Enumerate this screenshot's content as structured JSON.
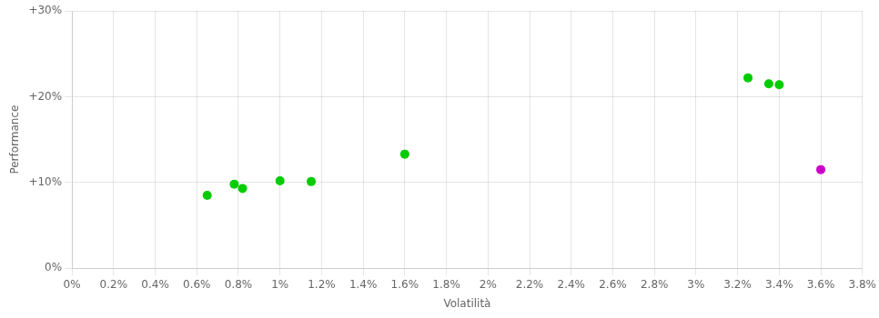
{
  "chart_data": {
    "type": "scatter",
    "xlabel": "Volatilità",
    "ylabel": "Performance",
    "series": [
      {
        "color": "#00cc00",
        "x": [
          0.0065,
          0.0078,
          0.0082,
          0.01,
          0.0115,
          0.016,
          0.0325,
          0.0335,
          0.034
        ],
        "values": [
          0.085,
          0.098,
          0.093,
          0.102,
          0.101,
          0.133,
          0.222,
          0.215,
          0.214
        ]
      },
      {
        "color": "#cc00cc",
        "x": [
          0.036
        ],
        "values": [
          0.115
        ]
      }
    ],
    "xlim": [
      0.0,
      0.038
    ],
    "ylim": [
      0.0,
      0.3
    ],
    "xticks": [
      {
        "value": 0.0,
        "label": "0%"
      },
      {
        "value": 0.002,
        "label": "0.2%"
      },
      {
        "value": 0.004,
        "label": "0.4%"
      },
      {
        "value": 0.006,
        "label": "0.6%"
      },
      {
        "value": 0.008,
        "label": "0.8%"
      },
      {
        "value": 0.01,
        "label": "1%"
      },
      {
        "value": 0.012,
        "label": "1.2%"
      },
      {
        "value": 0.014,
        "label": "1.4%"
      },
      {
        "value": 0.016,
        "label": "1.6%"
      },
      {
        "value": 0.018,
        "label": "1.8%"
      },
      {
        "value": 0.02,
        "label": "2%"
      },
      {
        "value": 0.022,
        "label": "2.2%"
      },
      {
        "value": 0.024,
        "label": "2.4%"
      },
      {
        "value": 0.026,
        "label": "2.6%"
      },
      {
        "value": 0.028,
        "label": "2.8%"
      },
      {
        "value": 0.03,
        "label": "3%"
      },
      {
        "value": 0.032,
        "label": "3.2%"
      },
      {
        "value": 0.034,
        "label": "3.4%"
      },
      {
        "value": 0.036,
        "label": "3.6%"
      },
      {
        "value": 0.038,
        "label": "3.8%"
      }
    ],
    "yticks": [
      {
        "value": 0.0,
        "label": "0%"
      },
      {
        "value": 0.1,
        "label": "+10%"
      },
      {
        "value": 0.2,
        "label": "+20%"
      },
      {
        "value": 0.3,
        "label": "+30%"
      }
    ],
    "grid": true
  }
}
